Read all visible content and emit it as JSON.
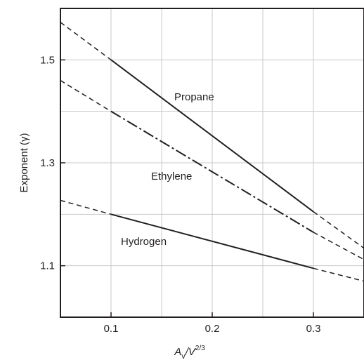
{
  "chart_data": {
    "type": "line",
    "xlabel": {
      "main": "A",
      "sub": "v",
      "mid": "/V",
      "sup": "2/3"
    },
    "ylabel": "Exponent (γ)",
    "xlim": [
      0.05,
      0.35
    ],
    "ylim": [
      1.0,
      1.6
    ],
    "xticks": [
      0.1,
      0.2,
      0.3
    ],
    "xtick_labels": [
      "0.1",
      "0.2",
      "0.3"
    ],
    "yticks": [
      1.1,
      1.3,
      1.5
    ],
    "ytick_labels": [
      "1.1",
      "1.3",
      "1.5"
    ],
    "grid": true,
    "legend": "none",
    "series": [
      {
        "name": "Propane",
        "x_solid": [
          0.1,
          0.3
        ],
        "y_solid": [
          1.5,
          1.205
        ],
        "x_dashed": [
          [
            0.05,
            0.1
          ],
          [
            0.3,
            0.35
          ]
        ],
        "y_dashed": [
          [
            1.573,
            1.5
          ],
          [
            1.205,
            1.134
          ]
        ],
        "style": "solid"
      },
      {
        "name": "Ethylene",
        "x_solid": [
          0.1,
          0.3
        ],
        "y_solid": [
          1.4,
          1.165
        ],
        "x_dashed": [
          [
            0.05,
            0.1
          ],
          [
            0.3,
            0.35
          ]
        ],
        "y_dashed": [
          [
            1.46,
            1.4
          ],
          [
            1.165,
            1.112
          ]
        ],
        "style": "dashdot"
      },
      {
        "name": "Hydrogen",
        "x_solid": [
          0.1,
          0.3
        ],
        "y_solid": [
          1.2,
          1.095
        ],
        "x_dashed": [
          [
            0.05,
            0.1
          ],
          [
            0.3,
            0.35
          ]
        ],
        "y_dashed": [
          [
            1.227,
            1.2
          ],
          [
            1.095,
            1.07
          ]
        ],
        "style": "solid"
      }
    ],
    "colors": {
      "line": "#231f20",
      "grid": "#c8c8c8",
      "frame": "#231f20"
    }
  }
}
